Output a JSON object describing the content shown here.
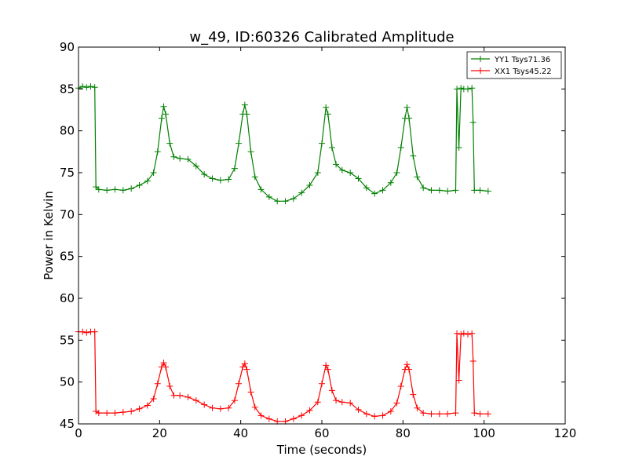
{
  "chart_data": {
    "type": "line",
    "title": "w_49, ID:60326 Calibrated Amplitude",
    "xlabel": "Time (seconds)",
    "ylabel": "Power in Kelvin",
    "xlim": [
      0,
      120
    ],
    "ylim": [
      45,
      90
    ],
    "xticks": [
      "0",
      "20",
      "40",
      "60",
      "80",
      "100",
      "120"
    ],
    "yticks": [
      "45",
      "50",
      "55",
      "60",
      "65",
      "70",
      "75",
      "80",
      "85",
      "90"
    ],
    "grid": false,
    "legend_position": "top-right",
    "series": [
      {
        "name": "YY1 Tsys71.36",
        "color": "#008000",
        "marker": "plus",
        "points": [
          [
            0,
            85.1
          ],
          [
            1,
            85.3
          ],
          [
            2,
            85.2
          ],
          [
            3,
            85.3
          ],
          [
            4,
            85.2
          ],
          [
            4.3,
            73.3
          ],
          [
            5,
            73.0
          ],
          [
            7,
            72.9
          ],
          [
            9,
            73.0
          ],
          [
            11,
            72.9
          ],
          [
            13,
            73.1
          ],
          [
            15,
            73.5
          ],
          [
            17,
            74.0
          ],
          [
            18.5,
            75.0
          ],
          [
            19.5,
            77.5
          ],
          [
            20.5,
            81.5
          ],
          [
            21,
            82.9
          ],
          [
            21.5,
            82.0
          ],
          [
            22.5,
            78.5
          ],
          [
            23.5,
            76.9
          ],
          [
            25,
            76.7
          ],
          [
            27,
            76.6
          ],
          [
            29,
            75.8
          ],
          [
            31,
            74.8
          ],
          [
            33,
            74.3
          ],
          [
            35,
            74.1
          ],
          [
            37,
            74.2
          ],
          [
            38.5,
            75.5
          ],
          [
            39.5,
            78.5
          ],
          [
            40.5,
            82.0
          ],
          [
            41,
            83.1
          ],
          [
            41.5,
            82.0
          ],
          [
            42.5,
            77.5
          ],
          [
            43.5,
            74.5
          ],
          [
            45,
            73.0
          ],
          [
            47,
            72.1
          ],
          [
            49,
            71.6
          ],
          [
            51,
            71.6
          ],
          [
            53,
            71.9
          ],
          [
            55,
            72.6
          ],
          [
            57,
            73.5
          ],
          [
            59,
            75.0
          ],
          [
            60,
            78.5
          ],
          [
            61,
            82.8
          ],
          [
            61.5,
            82.0
          ],
          [
            62.5,
            78.0
          ],
          [
            63.5,
            76.0
          ],
          [
            65,
            75.3
          ],
          [
            67,
            75.0
          ],
          [
            69,
            74.3
          ],
          [
            71,
            73.2
          ],
          [
            73,
            72.5
          ],
          [
            75,
            72.9
          ],
          [
            77,
            73.8
          ],
          [
            78.5,
            75.0
          ],
          [
            79.5,
            78.0
          ],
          [
            80.5,
            81.5
          ],
          [
            81,
            82.8
          ],
          [
            81.5,
            81.5
          ],
          [
            82.5,
            77.0
          ],
          [
            83.5,
            74.5
          ],
          [
            85,
            73.2
          ],
          [
            87,
            72.9
          ],
          [
            89,
            72.9
          ],
          [
            91,
            72.8
          ],
          [
            93,
            72.9
          ],
          [
            93.3,
            85.0
          ],
          [
            93.8,
            78.0
          ],
          [
            94.3,
            85.1
          ],
          [
            95,
            85.0
          ],
          [
            96,
            85.0
          ],
          [
            97,
            85.1
          ],
          [
            97.3,
            81.0
          ],
          [
            97.6,
            72.9
          ],
          [
            99,
            72.9
          ],
          [
            101,
            72.8
          ]
        ]
      },
      {
        "name": "XX1 Tsys45.22",
        "color": "#ff0000",
        "marker": "plus",
        "points": [
          [
            0,
            56.0
          ],
          [
            1,
            56.0
          ],
          [
            2,
            55.9
          ],
          [
            3,
            56.0
          ],
          [
            4,
            56.0
          ],
          [
            4.3,
            46.5
          ],
          [
            5,
            46.3
          ],
          [
            7,
            46.3
          ],
          [
            9,
            46.3
          ],
          [
            11,
            46.4
          ],
          [
            13,
            46.5
          ],
          [
            15,
            46.8
          ],
          [
            17,
            47.2
          ],
          [
            18.5,
            48.0
          ],
          [
            19.5,
            49.8
          ],
          [
            20.5,
            51.8
          ],
          [
            21,
            52.3
          ],
          [
            21.5,
            51.8
          ],
          [
            22.5,
            49.5
          ],
          [
            23.5,
            48.4
          ],
          [
            25,
            48.4
          ],
          [
            27,
            48.2
          ],
          [
            29,
            47.8
          ],
          [
            31,
            47.3
          ],
          [
            33,
            46.9
          ],
          [
            35,
            46.8
          ],
          [
            37,
            46.9
          ],
          [
            38.5,
            47.8
          ],
          [
            39.5,
            49.8
          ],
          [
            40.5,
            51.8
          ],
          [
            41,
            52.2
          ],
          [
            41.5,
            51.5
          ],
          [
            42.5,
            48.8
          ],
          [
            43.5,
            47.0
          ],
          [
            45,
            46.0
          ],
          [
            47,
            45.6
          ],
          [
            49,
            45.3
          ],
          [
            51,
            45.3
          ],
          [
            53,
            45.6
          ],
          [
            55,
            46.0
          ],
          [
            57,
            46.6
          ],
          [
            59,
            47.6
          ],
          [
            60,
            49.8
          ],
          [
            61,
            52.0
          ],
          [
            61.5,
            51.5
          ],
          [
            62.5,
            49.0
          ],
          [
            63.5,
            47.8
          ],
          [
            65,
            47.6
          ],
          [
            67,
            47.5
          ],
          [
            69,
            46.7
          ],
          [
            71,
            46.2
          ],
          [
            73,
            45.9
          ],
          [
            75,
            46.0
          ],
          [
            77,
            46.5
          ],
          [
            78.5,
            47.5
          ],
          [
            79.5,
            49.5
          ],
          [
            80.5,
            51.5
          ],
          [
            81,
            52.1
          ],
          [
            81.5,
            51.5
          ],
          [
            82.5,
            48.5
          ],
          [
            83.5,
            46.9
          ],
          [
            85,
            46.3
          ],
          [
            87,
            46.2
          ],
          [
            89,
            46.2
          ],
          [
            91,
            46.2
          ],
          [
            93,
            46.3
          ],
          [
            93.3,
            55.8
          ],
          [
            93.8,
            50.2
          ],
          [
            94.3,
            55.7
          ],
          [
            95,
            55.8
          ],
          [
            96,
            55.7
          ],
          [
            97,
            55.8
          ],
          [
            97.3,
            52.5
          ],
          [
            97.6,
            46.3
          ],
          [
            99,
            46.2
          ],
          [
            101,
            46.2
          ]
        ]
      }
    ]
  }
}
